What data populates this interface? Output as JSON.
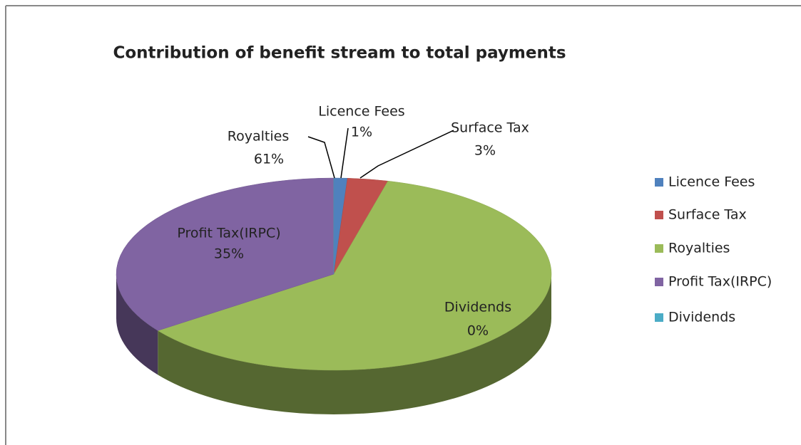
{
  "chart_data": {
    "type": "pie3d",
    "title": "Contribution of benefit stream to total payments",
    "categories": [
      "Licence Fees",
      "Surface Tax",
      "Royalties",
      "Profit Tax(IRPC)",
      "Dividends"
    ],
    "values": [
      1,
      3,
      61,
      35,
      0
    ],
    "value_labels": [
      "1%",
      "3%",
      "61%",
      "35%",
      "0%"
    ],
    "colors": [
      "#4f81bd",
      "#c0504d",
      "#9bbb59",
      "#8064a2",
      "#4bacc6"
    ],
    "legend": "right"
  }
}
